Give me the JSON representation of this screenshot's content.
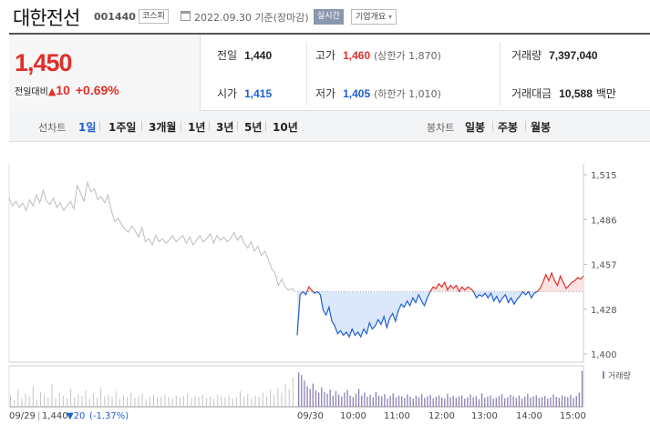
{
  "header": {
    "stock_name": "대한전선",
    "stock_code": "001440",
    "market": "코스피",
    "date_text": "2022.09.30 기준(장마감)",
    "realtime_label": "실시간",
    "company_label": "기업개요"
  },
  "price": {
    "current": "1,450",
    "change_label": "전일대비",
    "change_value": "10",
    "change_pct": "+0.69%"
  },
  "stats": {
    "prev_close_label": "전일",
    "prev_close": "1,440",
    "high_label": "고가",
    "high": "1,460",
    "upper_limit": "(상한가 1,870)",
    "volume_label": "거래량",
    "volume": "7,397,040",
    "open_label": "시가",
    "open": "1,415",
    "low_label": "저가",
    "low": "1,405",
    "lower_limit": "(하한가 1,010)",
    "amount_label": "거래대금",
    "amount": "10,588",
    "amount_unit": "백만"
  },
  "tabs": {
    "line_chart_label": "선차트",
    "periods": [
      "1일",
      "1주일",
      "3개월",
      "1년",
      "3년",
      "5년",
      "10년"
    ],
    "active_period": "1일",
    "candle_label": "봉차트",
    "candles": [
      "일봉",
      "주봉",
      "월봉"
    ]
  },
  "colors": {
    "up": "#e0302a",
    "down": "#1f5fd1",
    "prev_day_line": "#bdbdbd",
    "volume_bar": "#8e7fb5"
  },
  "chart_data": {
    "type": "line",
    "y_ticks": [
      "1,515",
      "1,486",
      "1,457",
      "1,428",
      "1,400"
    ],
    "ylim": [
      1400,
      1515
    ],
    "reference_price": 1440,
    "x_labels": [
      "09/29",
      "09/30",
      "10:00",
      "11:00",
      "12:00",
      "13:00",
      "14:00",
      "15:00"
    ],
    "volume_label": "거래량",
    "prev_day_summary": {
      "date": "09/29",
      "price": "1,440",
      "change": "▼20",
      "pct": "(-1.37%)"
    },
    "series": [
      {
        "values": [
          1500,
          1495,
          1498,
          1494,
          1497,
          1492,
          1499,
          1495,
          1502,
          1497,
          1505,
          1498,
          1496,
          1500,
          1494,
          1497,
          1492,
          1495,
          1498,
          1493,
          1508,
          1503,
          1498,
          1510,
          1504,
          1506,
          1499,
          1501,
          1497,
          1502,
          1492,
          1485,
          1487,
          1483,
          1480,
          1478,
          1482,
          1479,
          1475,
          1481,
          1472,
          1474,
          1470,
          1476,
          1472,
          1474,
          1471,
          1473,
          1476,
          1472,
          1474,
          1476,
          1471,
          1475,
          1470,
          1473,
          1476,
          1472,
          1474,
          1477,
          1471,
          1476,
          1473,
          1475,
          1472,
          1474,
          1478,
          1473,
          1476,
          1471,
          1468,
          1472,
          1466,
          1469,
          1463,
          1466,
          1461,
          1455,
          1452,
          1444,
          1448,
          1443,
          1441,
          1442,
          1440
        ]
      },
      {
        "values": [
          1412,
          1438,
          1440,
          1438,
          1443,
          1441,
          1439,
          1440,
          1438,
          1428,
          1425,
          1430,
          1421,
          1418,
          1413,
          1415,
          1412,
          1414,
          1411,
          1416,
          1412,
          1414,
          1411,
          1416,
          1413,
          1420,
          1416,
          1418,
          1422,
          1419,
          1424,
          1417,
          1423,
          1426,
          1421,
          1428,
          1432,
          1430,
          1434,
          1431,
          1436,
          1433,
          1438,
          1434,
          1431,
          1436,
          1440,
          1443,
          1442,
          1445,
          1443,
          1446,
          1441,
          1444,
          1442,
          1444,
          1440,
          1443,
          1441,
          1443,
          1442,
          1440,
          1436,
          1438,
          1437,
          1439,
          1436,
          1439,
          1434,
          1437,
          1433,
          1436,
          1438,
          1433,
          1436,
          1432,
          1435,
          1437,
          1440,
          1438,
          1440,
          1436,
          1439,
          1440,
          1442,
          1446,
          1451,
          1447,
          1452,
          1447,
          1444,
          1450,
          1446,
          1442,
          1444,
          1446,
          1447,
          1449,
          1448,
          1450
        ]
      }
    ],
    "volume": {
      "prev_day": [
        30,
        18,
        45,
        22,
        35,
        28,
        55,
        20,
        40,
        32,
        25,
        60,
        24,
        38,
        30,
        22,
        48,
        26,
        34,
        29,
        44,
        20,
        36,
        24,
        52,
        28,
        33,
        27,
        41,
        22,
        30,
        26,
        38,
        24,
        29,
        35,
        21,
        28,
        32,
        25,
        27,
        33,
        26,
        22,
        30,
        24,
        28,
        35,
        23,
        29,
        26,
        31,
        24,
        27,
        22,
        33,
        28,
        25,
        30,
        23,
        26,
        42,
        28,
        34,
        25,
        30,
        27,
        38,
        29,
        45,
        32,
        50,
        38,
        62,
        48,
        78
      ],
      "today": [
        92,
        85,
        70,
        55,
        48,
        62,
        44,
        38,
        52,
        40,
        35,
        46,
        30,
        42,
        33,
        28,
        38,
        45,
        30,
        26,
        35,
        48,
        30,
        38,
        27,
        32,
        25,
        40,
        30,
        28,
        34,
        22,
        29,
        36,
        25,
        30,
        28,
        24,
        33,
        27,
        22,
        30,
        26,
        34,
        24,
        28,
        32,
        23,
        27,
        30,
        25,
        22,
        35,
        26,
        29,
        24,
        28,
        30,
        22,
        26,
        33,
        25,
        28,
        21,
        36,
        24,
        27,
        30,
        22,
        25,
        29,
        34,
        23,
        26,
        32,
        28,
        24,
        30,
        22,
        27,
        35,
        25,
        28,
        31,
        24,
        26,
        29,
        22,
        25,
        33,
        27,
        24,
        30,
        28,
        26,
        32,
        24,
        29,
        38,
        96
      ]
    }
  }
}
